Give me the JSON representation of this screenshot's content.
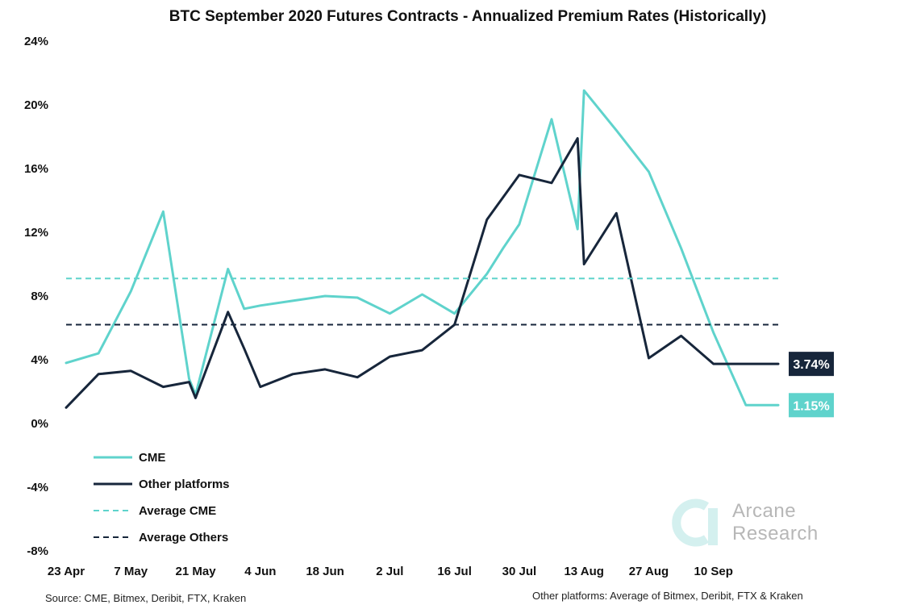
{
  "footnotes": {
    "source": "Source: CME, Bitmex, Deribit, FTX, Kraken",
    "platforms": "Other platforms: Average of Bitmex, Deribit, FTX & Kraken"
  },
  "watermark": {
    "line1": "Arcane",
    "line2": "Research",
    "color": "#cfeeee"
  },
  "colors": {
    "cme": "#5fd3cc",
    "others": "#17263b"
  },
  "chart_data": {
    "type": "line",
    "title": "BTC September 2020 Futures Contracts - Annualized Premium Rates (Historically)",
    "xlabel": "",
    "ylabel": "",
    "ylim": [
      -8,
      24
    ],
    "yticks": [
      -8,
      -4,
      0,
      4,
      8,
      12,
      16,
      20,
      24
    ],
    "ytick_labels": [
      "-8%",
      "-4%",
      "0%",
      "4%",
      "8%",
      "12%",
      "16%",
      "20%",
      "24%"
    ],
    "x_tick_labels": [
      "23 Apr",
      "7 May",
      "21 May",
      "4 Jun",
      "18 Jun",
      "2 Jul",
      "16 Jul",
      "30 Jul",
      "13 Aug",
      "27 Aug",
      "10 Sep"
    ],
    "x_tick_positions": [
      0,
      2,
      4,
      6,
      8,
      10,
      12,
      14,
      16,
      18,
      20
    ],
    "xlim": [
      0,
      22
    ],
    "grid": false,
    "legend_position": "bottom-left",
    "series": [
      {
        "name": "CME",
        "style": "solid",
        "color": "#5fd3cc",
        "x": [
          0,
          1,
          2,
          3,
          3.8,
          4,
          5,
          5.5,
          6,
          7,
          8,
          9,
          10,
          11,
          12,
          13,
          13.5,
          14,
          15,
          15.8,
          16,
          17,
          18,
          19,
          20,
          21,
          22
        ],
        "y": [
          3.8,
          4.4,
          8.3,
          13.3,
          2.8,
          1.8,
          9.7,
          7.2,
          7.4,
          7.7,
          8.0,
          7.9,
          6.9,
          8.1,
          6.9,
          9.4,
          11.0,
          12.5,
          19.1,
          12.2,
          20.9,
          18.4,
          15.8,
          11.0,
          5.7,
          1.15,
          1.15
        ],
        "end_label": "1.15%"
      },
      {
        "name": "Other platforms",
        "style": "solid",
        "color": "#17263b",
        "x": [
          0,
          1,
          2,
          3,
          3.8,
          4,
          5,
          5.5,
          6,
          7,
          8,
          9,
          10,
          11,
          12,
          13,
          14,
          15,
          15.8,
          16,
          17,
          18,
          19,
          20,
          21,
          22
        ],
        "y": [
          1.0,
          3.1,
          3.3,
          2.3,
          2.6,
          1.6,
          7.0,
          4.7,
          2.3,
          3.1,
          3.4,
          2.9,
          4.2,
          4.6,
          6.2,
          12.8,
          15.6,
          15.1,
          17.9,
          10.0,
          13.2,
          4.1,
          5.5,
          3.74,
          3.74,
          3.74
        ],
        "end_label": "3.74%"
      },
      {
        "name": "Average CME",
        "style": "dashed",
        "color": "#5fd3cc",
        "y_constant": 9.1
      },
      {
        "name": "Average Others",
        "style": "dashed",
        "color": "#17263b",
        "y_constant": 6.2
      }
    ]
  }
}
